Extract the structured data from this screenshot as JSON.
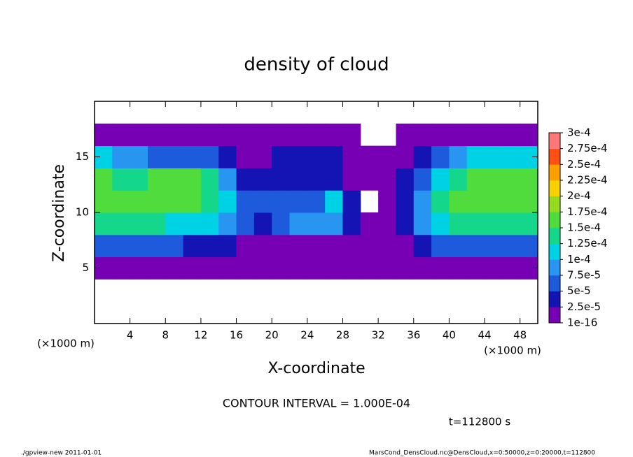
{
  "chart_data": {
    "type": "heatmap",
    "title": "density of cloud",
    "x_label": "X-coordinate",
    "y_label": "Z-coordinate",
    "unit_labels": [
      "(×1000 m)",
      "(×1000 m)"
    ],
    "x": [
      1,
      3,
      5,
      7,
      9,
      11,
      13,
      15,
      17,
      19,
      21,
      23,
      25,
      27,
      29,
      31,
      33,
      35,
      37,
      39,
      41,
      43,
      45,
      47,
      49
    ],
    "y": [
      1,
      3,
      5,
      7,
      9,
      11,
      13,
      15,
      17,
      19
    ],
    "values": [
      [
        null,
        null,
        null,
        null,
        null,
        null,
        null,
        null,
        null,
        null,
        null,
        null,
        null,
        null,
        null,
        null,
        null,
        null,
        null,
        null,
        null,
        null,
        null,
        null,
        null
      ],
      [
        null,
        null,
        null,
        null,
        null,
        null,
        null,
        null,
        null,
        null,
        null,
        null,
        null,
        null,
        null,
        null,
        null,
        null,
        null,
        null,
        null,
        null,
        null,
        null,
        null
      ],
      [
        1e-05,
        1e-05,
        1e-05,
        1e-05,
        1e-05,
        1e-05,
        1e-05,
        1e-05,
        1e-05,
        1e-05,
        1e-05,
        1e-05,
        1e-05,
        1e-05,
        1e-05,
        1e-05,
        1e-05,
        1e-05,
        1e-05,
        1e-05,
        1e-05,
        1e-05,
        1e-05,
        1e-05,
        1e-05
      ],
      [
        5e-05,
        5e-05,
        5e-05,
        5e-05,
        5e-05,
        4e-05,
        4e-05,
        4e-05,
        2e-05,
        2e-05,
        2e-05,
        2e-05,
        2e-05,
        2e-05,
        1e-05,
        1e-05,
        1e-05,
        2e-05,
        4e-05,
        5e-05,
        5e-05,
        5e-05,
        5e-05,
        5e-05,
        5e-05
      ],
      [
        0.00013,
        0.00013,
        0.00013,
        0.00013,
        0.00012,
        0.00011,
        0.0001,
        8e-05,
        5e-05,
        4e-05,
        5e-05,
        8e-05,
        9e-05,
        9e-05,
        3e-05,
        1e-05,
        1e-05,
        3e-05,
        9e-05,
        0.00012,
        0.00013,
        0.00013,
        0.00013,
        0.00013,
        0.00013
      ],
      [
        0.000155,
        0.000155,
        0.00015,
        0.000155,
        0.000155,
        0.00015,
        0.00014,
        0.0001,
        6e-05,
        5e-05,
        5e-05,
        6e-05,
        7e-05,
        0.00011,
        3e-05,
        null,
        1e-05,
        4e-05,
        8e-05,
        0.00014,
        0.000155,
        0.000155,
        0.000155,
        0.000155,
        0.00015
      ],
      [
        0.00015,
        0.000145,
        0.00014,
        0.000155,
        0.000155,
        0.00015,
        0.00013,
        9e-05,
        3e-05,
        4e-05,
        4e-05,
        4e-05,
        4e-05,
        4e-05,
        2e-05,
        1e-05,
        1e-05,
        3e-05,
        6e-05,
        0.00011,
        0.00014,
        0.00015,
        0.00015,
        0.00015,
        0.00015
      ],
      [
        0.00011,
        9e-05,
        8e-05,
        7e-05,
        7e-05,
        7e-05,
        7e-05,
        4e-05,
        1e-05,
        1e-05,
        3e-05,
        4e-05,
        4e-05,
        3e-05,
        1e-05,
        1e-05,
        1e-05,
        1e-05,
        3e-05,
        6e-05,
        8e-05,
        0.0001,
        0.00011,
        0.00011,
        0.00011
      ],
      [
        1e-05,
        1e-05,
        1e-05,
        1e-05,
        1e-05,
        1e-05,
        1e-05,
        1e-05,
        1e-05,
        1e-05,
        1e-05,
        1e-05,
        1e-05,
        1e-05,
        1e-05,
        null,
        null,
        1e-05,
        1e-05,
        1e-05,
        1e-05,
        1e-05,
        1e-05,
        1e-05,
        1e-05
      ],
      [
        null,
        null,
        null,
        null,
        null,
        null,
        null,
        null,
        null,
        null,
        null,
        null,
        null,
        null,
        null,
        null,
        null,
        null,
        null,
        null,
        null,
        null,
        null,
        null,
        null
      ]
    ],
    "xlim": [
      0,
      50
    ],
    "ylim": [
      0,
      20
    ],
    "xticks": [
      4,
      8,
      12,
      16,
      20,
      24,
      28,
      32,
      36,
      40,
      44,
      48
    ],
    "yticks": [
      5,
      10,
      15
    ],
    "colorbar": {
      "levels": [
        {
          "value": 1e-16,
          "label": "1e-16"
        },
        {
          "value": 2.5e-05,
          "label": "2.5e-5"
        },
        {
          "value": 5e-05,
          "label": "5e-5"
        },
        {
          "value": 7.5e-05,
          "label": "7.5e-5"
        },
        {
          "value": 0.0001,
          "label": "1e-4"
        },
        {
          "value": 0.000125,
          "label": "1.25e-4"
        },
        {
          "value": 0.00015,
          "label": "1.5e-4"
        },
        {
          "value": 0.000175,
          "label": "1.75e-4"
        },
        {
          "value": 0.0002,
          "label": "2e-4"
        },
        {
          "value": 0.000225,
          "label": "2.25e-4"
        },
        {
          "value": 0.00025,
          "label": "2.5e-4"
        },
        {
          "value": 0.000275,
          "label": "2.75e-4"
        },
        {
          "value": 0.0003,
          "label": "3e-4"
        }
      ],
      "colors": [
        "#7800b4",
        "#1414b4",
        "#1e5adc",
        "#2896f0",
        "#00d2e6",
        "#14d78c",
        "#50dc3c",
        "#96dc1e",
        "#f5d200",
        "#ffa000",
        "#ff5014",
        "#ff7878"
      ]
    },
    "annotations": [
      "CONTOUR INTERVAL = 1.000E-04",
      "t=112800 s"
    ]
  },
  "footer": {
    "left": "./gpview-new  2011-01-01",
    "right": "MarsCond_DensCloud.nc@DensCloud,x=0:50000,z=0:20000,t=112800"
  }
}
